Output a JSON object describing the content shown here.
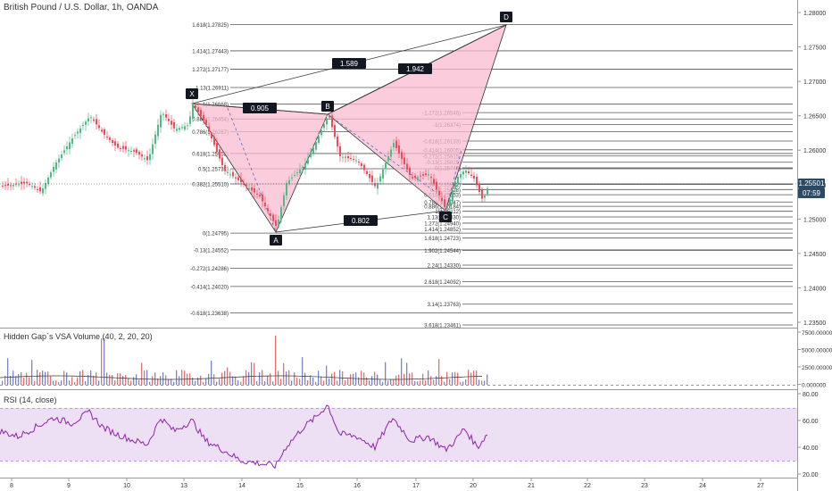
{
  "header": {
    "title": "British Pound / U.S. Dollar, 1h, OANDA"
  },
  "price_axis": {
    "ticks": [
      "1.28000",
      "1.27500",
      "1.27000",
      "1.26500",
      "1.26000",
      "1.25500",
      "1.25000",
      "1.24500",
      "1.24000",
      "1.23500"
    ]
  },
  "price_badge": {
    "price": "1.25501",
    "time": "07:59"
  },
  "volume_pane": {
    "label": "Hidden Gap`s VSA Volume (40, 2, 20, 20)",
    "ticks": [
      "7500.000000",
      "5000.000000",
      "2500.000000",
      "0.000000"
    ]
  },
  "rsi_pane": {
    "label": "RSI (14, close)",
    "ticks": [
      "80.00",
      "60.00",
      "40.00",
      "20.00"
    ]
  },
  "time_axis": {
    "labels": [
      "8",
      "9",
      "10",
      "13",
      "14",
      "15",
      "16",
      "17",
      "20",
      "21",
      "22",
      "23",
      "24",
      "27"
    ]
  },
  "pattern": {
    "points": [
      "X",
      "A",
      "B",
      "C",
      "D"
    ],
    "ratios": {
      "xb": "0.905",
      "ac": "0.802",
      "bd": "1.942",
      "xd": "1.589"
    }
  },
  "fib_left": [
    "1.618(1.27825)",
    "1.414(1.27443)",
    "1.272(1.27177)",
    "1.13(1.26911)",
    "1(1.26668)",
    "0.886(1.26454)",
    "0.786(1.26267)",
    "0.618(1.25952)",
    "0.5(1.25731)",
    "0.382(1.25510)",
    "0(1.24795)",
    "-0.13(1.24552)",
    "-0.272(1.24286)",
    "-0.414(1.24020)",
    "-0.618(1.23638)"
  ],
  "fib_right": [
    "-1.272(1.26546)",
    "-1(1.26374)",
    "-0.618(1.26133)",
    "-0.414(1.26005)",
    "-0.272(1.25915)",
    "-0.13(1.25825)",
    "0(1.25743)",
    "0.382(1.25502)",
    "0.5(1.25428)",
    "0.618(1.25353)",
    "0.786(1.25247)",
    "0.886(1.25184)",
    "1(1.25112)",
    "1.13(1.25030)",
    "1.272(1.24940)",
    "1.414(1.24852)",
    "1.618(1.24723)",
    "1.902(1.24544)",
    "2.24(1.24330)",
    "2.618(1.24092)",
    "3.14(1.23763)",
    "3.618(1.23461)"
  ],
  "colors": {
    "up": "#53b987",
    "down": "#eb4d5c",
    "pattern": "#f48fb1",
    "rsi": "#8e24aa",
    "rsi_band": "#ede0f4"
  }
}
